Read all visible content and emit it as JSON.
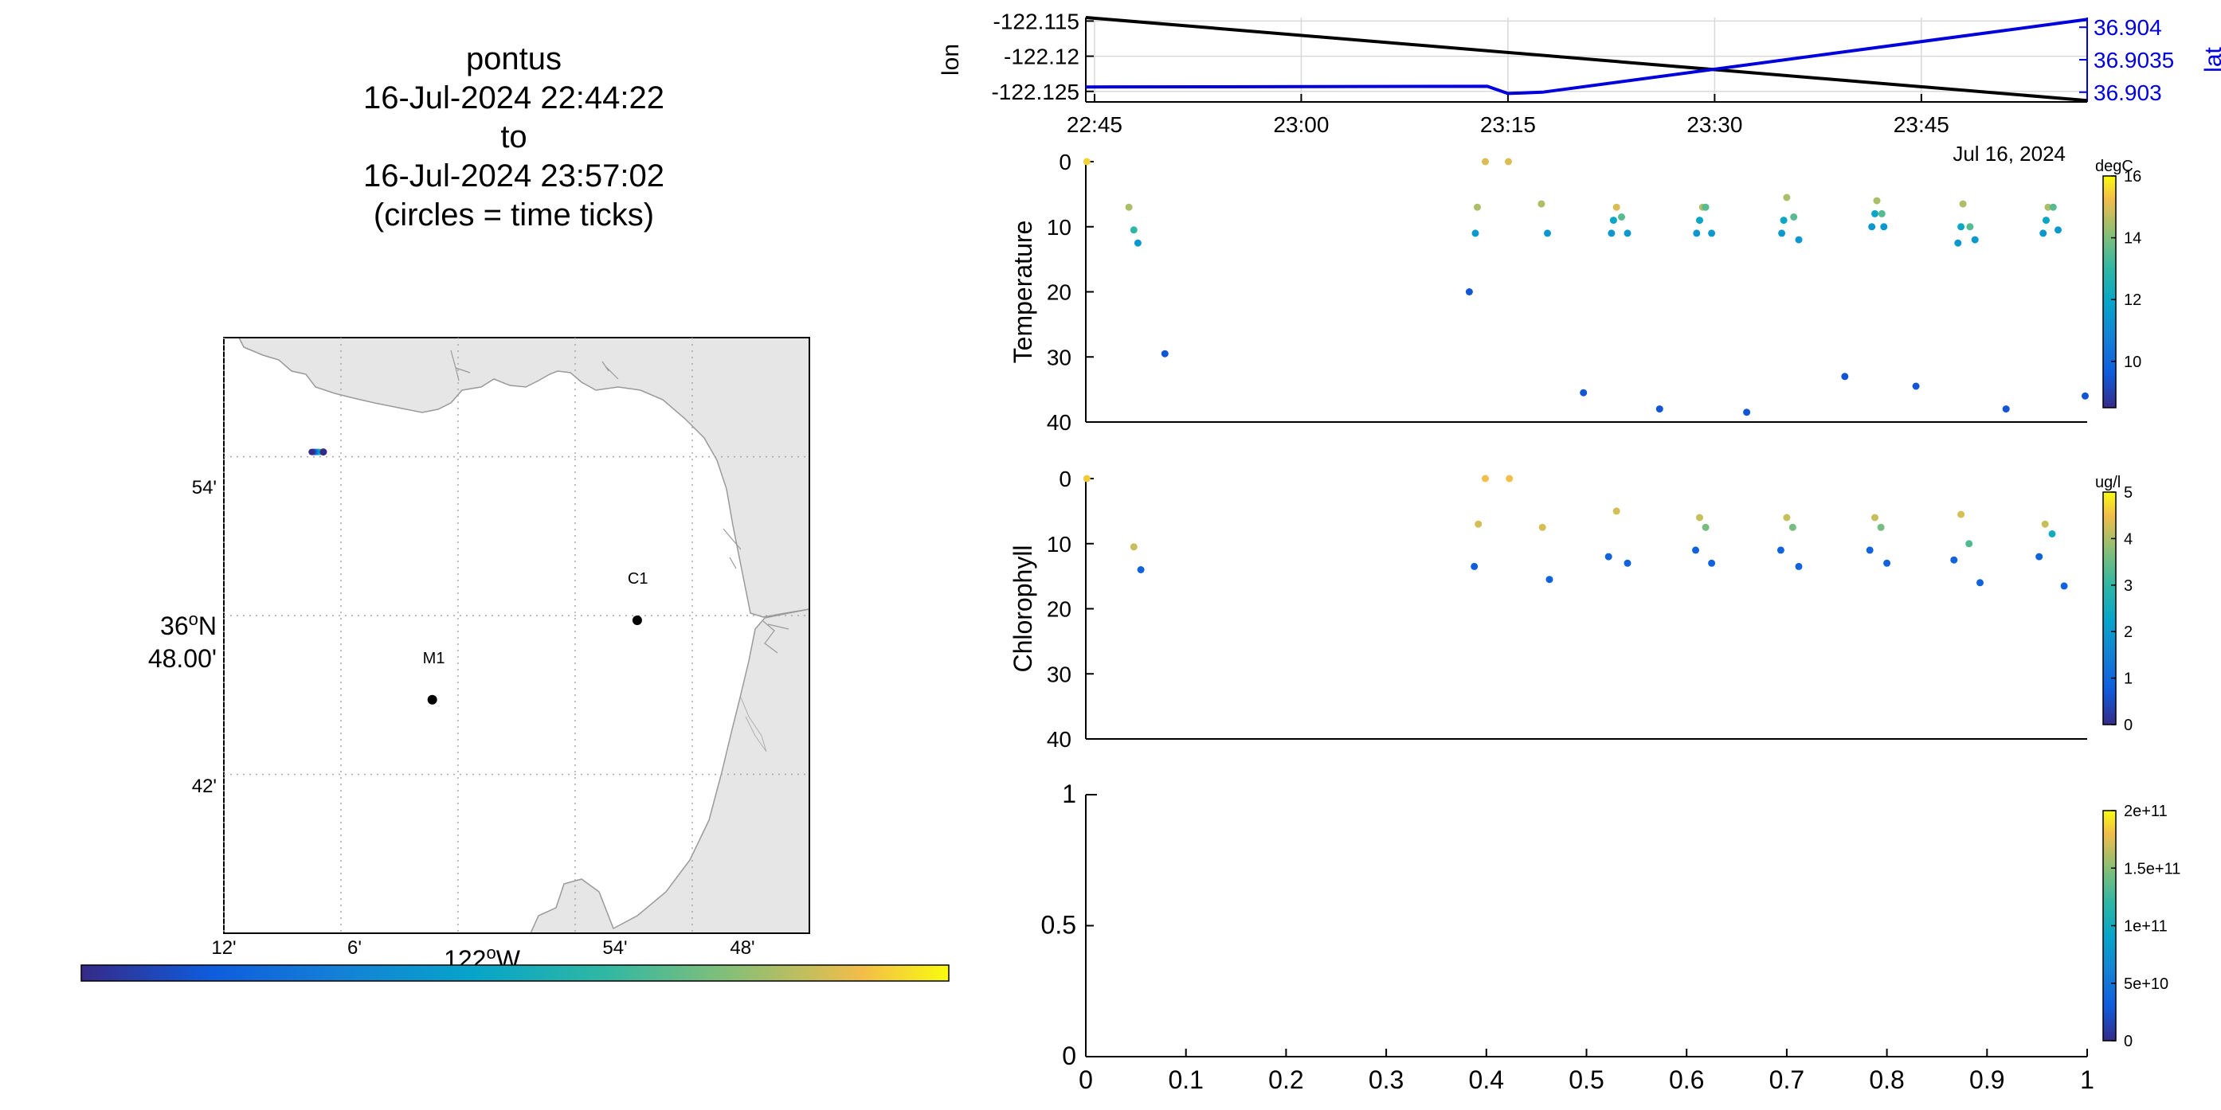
{
  "title": {
    "line1": "pontus",
    "line2": "16-Jul-2024 22:44:22",
    "line3": "to",
    "line4": "16-Jul-2024 23:57:02",
    "line5": "(circles = time ticks)"
  },
  "map": {
    "lon_ticks": [
      "12'",
      "6'",
      "54'",
      "48'"
    ],
    "lon_center_label": "122",
    "lon_degree": "o",
    "lon_hemisphere": "W",
    "lat_ticks": [
      "54'",
      "42'"
    ],
    "lat_center_deg": "36",
    "lat_degree": "o",
    "lat_hemisphere": "N",
    "lat_center_min": "48.00'",
    "stations": [
      {
        "name": "C1",
        "lon": -121.847,
        "lat": 36.797
      },
      {
        "name": "M1",
        "lon": -122.022,
        "lat": 36.747
      }
    ],
    "track": {
      "lon_start": -122.115,
      "lon_end": -122.125,
      "lat": 36.903
    },
    "colors": {
      "land": "#e6e6e6",
      "coast": "#9a9a9a",
      "grid": "#a8a8a8",
      "station": "#000000"
    }
  },
  "chart_data": [
    {
      "type": "line",
      "date_label": "Jul 16, 2024",
      "x_ticks": [
        "22:45",
        "23:00",
        "23:15",
        "23:30",
        "23:45"
      ],
      "xlim": [
        "22:44:22",
        "23:57:02"
      ],
      "ylabel_left": "lon",
      "ylabel_right": "lat",
      "yticks_left": [
        "-122.115",
        "-122.12",
        "-122.125"
      ],
      "yticks_right": [
        "36.904",
        "36.9035",
        "36.903"
      ],
      "ylim_left": [
        -122.1265,
        -122.1145
      ],
      "ylim_right": [
        36.90285,
        36.90415
      ],
      "series": [
        {
          "axis": "left",
          "color": "#000000",
          "x": [
            "22:44:22",
            "23:57:02"
          ],
          "y": [
            -122.1145,
            -122.1263
          ]
        },
        {
          "axis": "right",
          "color": "#0000dd",
          "x": [
            "22:44:22",
            "23:13:30",
            "23:15:00",
            "23:17:30",
            "23:57:02"
          ],
          "y": [
            36.90308,
            36.90309,
            36.90298,
            36.903,
            36.90412
          ]
        }
      ],
      "grid": true
    },
    {
      "type": "scatter",
      "ylabel": "Temperature",
      "colorbar_label": "degC",
      "colorbar_ticks": [
        "16",
        "14",
        "12",
        "10"
      ],
      "clim": [
        8.5,
        16
      ],
      "yticks": [
        "0",
        "10",
        "20",
        "30",
        "40"
      ],
      "ylim": [
        40,
        0
      ],
      "points": [
        [
          0.001,
          0,
          15.5
        ],
        [
          0.043,
          7,
          14.5
        ],
        [
          0.048,
          10.5,
          13
        ],
        [
          0.052,
          12.5,
          11.5
        ],
        [
          0.079,
          29.5,
          9.5
        ],
        [
          0.383,
          20,
          9.5
        ],
        [
          0.389,
          11,
          11.5
        ],
        [
          0.391,
          7,
          14.5
        ],
        [
          0.399,
          0,
          15
        ],
        [
          0.422,
          0,
          15
        ],
        [
          0.455,
          6.5,
          14.5
        ],
        [
          0.461,
          11,
          11.5
        ],
        [
          0.497,
          35.5,
          9.5
        ],
        [
          0.525,
          11,
          11.5
        ],
        [
          0.527,
          9,
          12
        ],
        [
          0.53,
          7,
          15
        ],
        [
          0.535,
          8.5,
          13.5
        ],
        [
          0.541,
          11,
          11.5
        ],
        [
          0.573,
          38,
          9.5
        ],
        [
          0.61,
          11,
          11.5
        ],
        [
          0.613,
          9,
          12
        ],
        [
          0.616,
          7,
          14.5
        ],
        [
          0.619,
          7,
          13.5
        ],
        [
          0.625,
          11,
          11.5
        ],
        [
          0.66,
          38.5,
          9.5
        ],
        [
          0.695,
          11,
          11.5
        ],
        [
          0.697,
          9,
          12
        ],
        [
          0.7,
          5.5,
          14.5
        ],
        [
          0.707,
          8.5,
          13.5
        ],
        [
          0.712,
          12,
          11.5
        ],
        [
          0.758,
          33,
          9.5
        ],
        [
          0.785,
          10,
          11.5
        ],
        [
          0.788,
          8,
          12
        ],
        [
          0.79,
          6,
          14.5
        ],
        [
          0.795,
          8,
          13.5
        ],
        [
          0.797,
          10,
          11.5
        ],
        [
          0.829,
          34.5,
          9.5
        ],
        [
          0.871,
          12.5,
          11.5
        ],
        [
          0.874,
          10,
          12
        ],
        [
          0.876,
          6.5,
          14.5
        ],
        [
          0.883,
          10,
          13.5
        ],
        [
          0.888,
          12,
          11.5
        ],
        [
          0.919,
          38,
          9.5
        ],
        [
          0.956,
          11,
          11.5
        ],
        [
          0.959,
          9,
          12
        ],
        [
          0.961,
          7,
          14.5
        ],
        [
          0.966,
          7,
          13.5
        ],
        [
          0.971,
          10.5,
          11.5
        ],
        [
          0.998,
          36,
          9.5
        ]
      ]
    },
    {
      "type": "scatter",
      "ylabel": "Chlorophyll",
      "colorbar_label": "ug/l",
      "colorbar_ticks": [
        "5",
        "4",
        "3",
        "2",
        "1",
        "0"
      ],
      "clim": [
        0,
        5
      ],
      "yticks": [
        "0",
        "10",
        "20",
        "30",
        "40"
      ],
      "ylim": [
        40,
        0
      ],
      "points": [
        [
          0.001,
          0,
          4.6
        ],
        [
          0.048,
          10.5,
          4.2
        ],
        [
          0.055,
          14,
          0.9
        ],
        [
          0.388,
          13.5,
          0.8
        ],
        [
          0.392,
          7,
          4.3
        ],
        [
          0.399,
          0,
          4.5
        ],
        [
          0.423,
          0,
          4.5
        ],
        [
          0.456,
          7.5,
          4.3
        ],
        [
          0.463,
          15.5,
          0.9
        ],
        [
          0.522,
          12,
          0.9
        ],
        [
          0.53,
          5,
          4.3
        ],
        [
          0.541,
          13,
          0.9
        ],
        [
          0.609,
          11,
          0.9
        ],
        [
          0.613,
          6,
          4.2
        ],
        [
          0.619,
          7.5,
          3.6
        ],
        [
          0.625,
          13,
          0.9
        ],
        [
          0.694,
          11,
          0.9
        ],
        [
          0.7,
          6,
          4.2
        ],
        [
          0.706,
          7.5,
          3.6
        ],
        [
          0.712,
          13.5,
          0.9
        ],
        [
          0.783,
          11,
          0.9
        ],
        [
          0.788,
          6,
          4.2
        ],
        [
          0.794,
          7.5,
          3.6
        ],
        [
          0.8,
          13,
          0.9
        ],
        [
          0.867,
          12.5,
          0.9
        ],
        [
          0.874,
          5.5,
          4.3
        ],
        [
          0.882,
          10,
          3.3
        ],
        [
          0.893,
          16,
          0.9
        ],
        [
          0.952,
          12,
          0.9
        ],
        [
          0.958,
          7,
          4.2
        ],
        [
          0.965,
          8.5,
          2.5
        ],
        [
          0.977,
          16.5,
          0.9
        ]
      ]
    },
    {
      "type": "scatter",
      "ylabel": "",
      "colorbar_ticks": [
        "2e+11",
        "1.5e+11",
        "1e+11",
        "5e+10",
        "0"
      ],
      "xticks": [
        "0",
        "0.1",
        "0.2",
        "0.3",
        "0.4",
        "0.5",
        "0.6",
        "0.7",
        "0.8",
        "0.9",
        "1"
      ],
      "yticks": [
        "1",
        "0.5",
        "0"
      ],
      "xlim": [
        0,
        1
      ],
      "ylim": [
        0,
        1
      ],
      "points": []
    }
  ]
}
